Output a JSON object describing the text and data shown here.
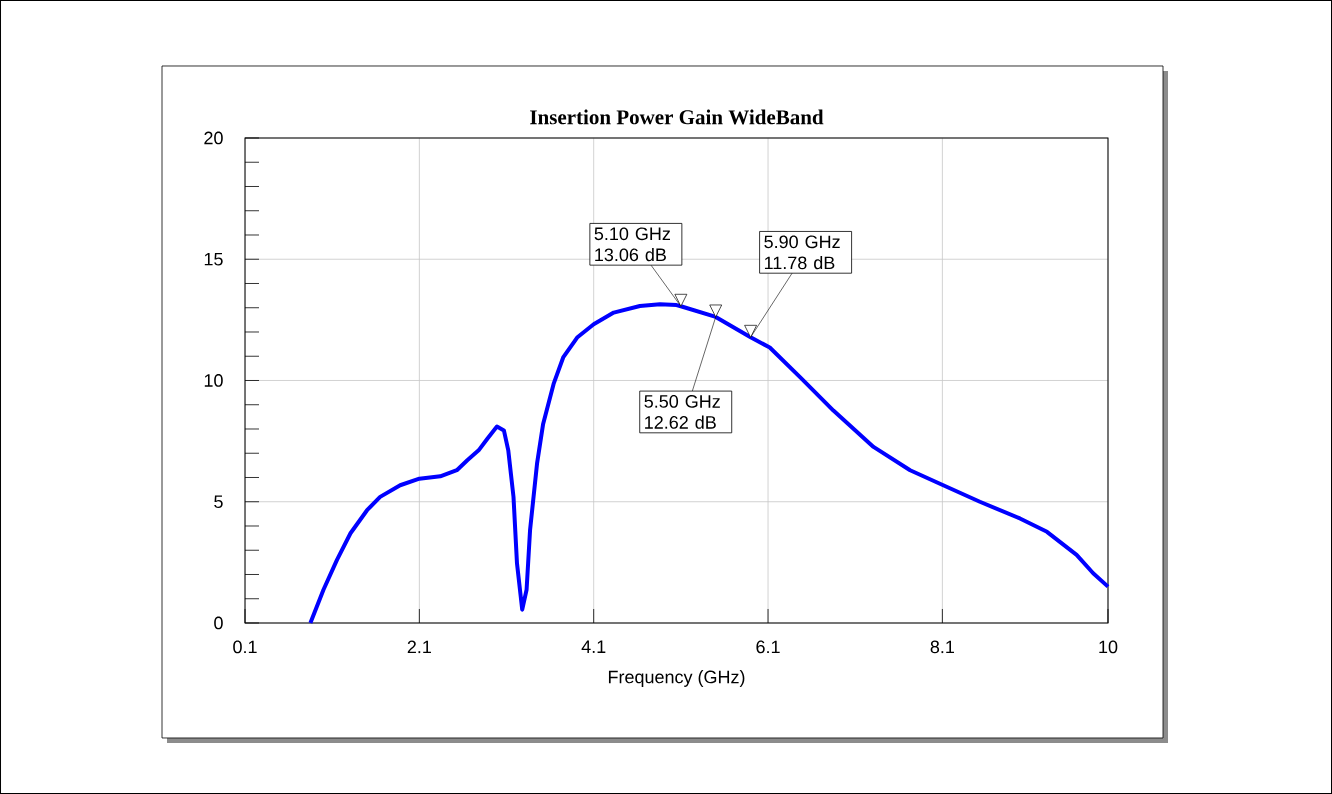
{
  "chart_data": {
    "type": "line",
    "title": "Insertion Power Gain WideBand",
    "xlabel": "Frequency (GHz)",
    "x": [
      0.85,
      1.0,
      1.155,
      1.31,
      1.5,
      1.65,
      1.88,
      2.1,
      2.34,
      2.53,
      2.65,
      2.78,
      2.88,
      2.99,
      3.07,
      3.12,
      3.18,
      3.22,
      3.28,
      3.33,
      3.37,
      3.45,
      3.52,
      3.64,
      3.75,
      3.91,
      4.1,
      4.33,
      4.63,
      4.86,
      5.05,
      5.1,
      5.5,
      5.9,
      6.12,
      6.47,
      6.85,
      7.31,
      7.73,
      8.11,
      8.53,
      8.99,
      9.3,
      9.64,
      9.83,
      10.0
    ],
    "series": [
      {
        "color": "#0000ff",
        "values": [
          0,
          1.37,
          2.6,
          3.7,
          4.65,
          5.2,
          5.68,
          5.95,
          6.05,
          6.3,
          6.71,
          7.12,
          7.6,
          8.1,
          7.94,
          7.12,
          5.2,
          2.46,
          0.55,
          1.37,
          3.83,
          6.57,
          8.21,
          9.86,
          10.95,
          11.77,
          12.32,
          12.8,
          13.07,
          13.14,
          13.11,
          13.06,
          12.62,
          11.78,
          11.36,
          10.13,
          8.76,
          7.26,
          6.3,
          5.68,
          5.0,
          4.31,
          3.76,
          2.81,
          2.05,
          1.5
        ]
      }
    ],
    "xlim": [
      0.1,
      10
    ],
    "xticks": [
      0.1,
      2.1,
      4.1,
      6.1,
      8.1,
      10
    ],
    "ylim": [
      0,
      20
    ],
    "yticks": [
      0,
      5,
      10,
      15,
      20
    ],
    "grid": true,
    "marker": "none",
    "line_style": "solid",
    "annotations": [
      {
        "text": "5.10 GHz 13.06 dB",
        "x": 5.1,
        "y": 13.06
      },
      {
        "text": "5.50 GHz 12.62 dB",
        "x": 5.5,
        "y": 12.62
      },
      {
        "text": "5.90 GHz 11.78 dB",
        "x": 5.9,
        "y": 11.78
      }
    ]
  }
}
